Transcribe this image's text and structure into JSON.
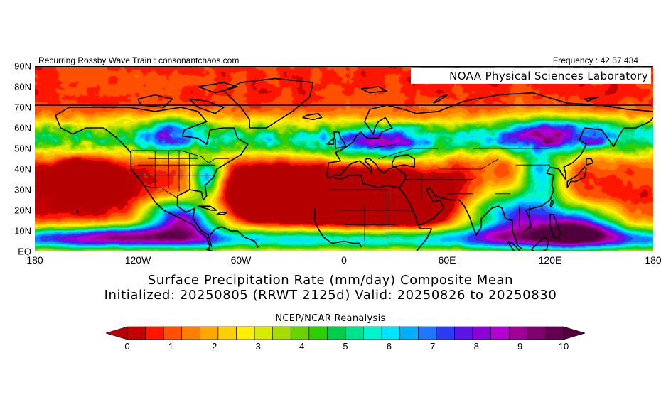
{
  "header": {
    "left": "Recurring Rossby Wave Train : consonantchaos.com",
    "right": "Frequency : 42 57 434"
  },
  "map": {
    "credit": "NOAA Physical Sciences Laboratory",
    "lat_labels": [
      "90N",
      "80N",
      "70N",
      "60N",
      "50N",
      "40N",
      "30N",
      "20N",
      "10N",
      "EQ"
    ],
    "lon_labels": [
      "180",
      "120W",
      "60W",
      "0",
      "60E",
      "120E",
      "180"
    ],
    "extent": {
      "lon": [
        -180,
        180
      ],
      "lat": [
        0,
        90
      ]
    }
  },
  "title": {
    "line1": "Surface Precipitation Rate (mm/day) Composite Mean",
    "line2": "Initialized: 20250805 (RRWT 2125d) Valid: 20250826 to 20250830"
  },
  "subtitle": "NCEP/NCAR Reanalysis",
  "colorbar": {
    "labels": [
      "0",
      "1",
      "2",
      "3",
      "4",
      "5",
      "6",
      "7",
      "8",
      "9",
      "10"
    ],
    "range": [
      0,
      10
    ],
    "colors": [
      "#c40000",
      "#ff1600",
      "#ff4f00",
      "#ff8000",
      "#ffa600",
      "#ffd000",
      "#fff000",
      "#d7ea00",
      "#a7dc00",
      "#6ad200",
      "#2ecf00",
      "#00cf4a",
      "#00e38e",
      "#00f5cd",
      "#00e5ff",
      "#00b0ff",
      "#1e78ff",
      "#2d3cf2",
      "#5a14e6",
      "#8c00dc",
      "#b400d2",
      "#a00096",
      "#82006e",
      "#640050"
    ],
    "under_color": "#b40000",
    "over_color": "#50003c"
  }
}
